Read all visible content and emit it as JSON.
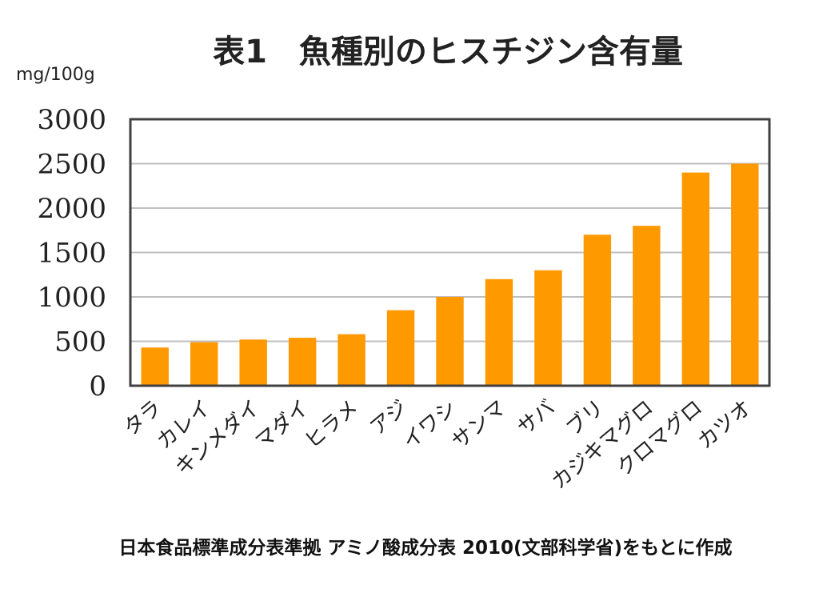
{
  "colors": {
    "bar": "#FF9900",
    "grid": "#BFBFBF",
    "axis": "#404040",
    "text": "#222222"
  },
  "chart_data": {
    "type": "bar",
    "title": "表1　魚種別のヒスチジン含有量",
    "ylabel": "mg/100g",
    "xlabel": "",
    "categories": [
      "タラ",
      "カレイ",
      "キンメダイ",
      "マダイ",
      "ヒラメ",
      "アジ",
      "イワシ",
      "サンマ",
      "サバ",
      "ブリ",
      "カジキマグロ",
      "クロマグロ",
      "カツオ"
    ],
    "values": [
      430,
      490,
      520,
      540,
      580,
      850,
      1000,
      1200,
      1300,
      1700,
      1800,
      2400,
      2500
    ],
    "ylim": [
      0,
      3000
    ],
    "yticks": [
      0,
      500,
      1000,
      1500,
      2000,
      2500,
      3000
    ],
    "grid": true,
    "legend": "none",
    "source": "日本食品標準成分表準拠 アミノ酸成分表 2010(文部科学省)をもとに作成"
  }
}
